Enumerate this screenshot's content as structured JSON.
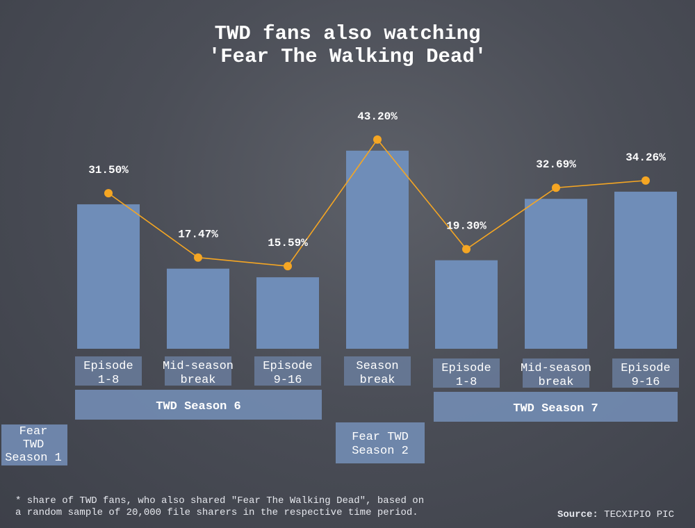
{
  "chart_data": {
    "type": "bar",
    "title_lines": [
      "TWD fans also watching",
      "'Fear The Walking Dead'"
    ],
    "categories": [
      {
        "lines": [
          "Episode",
          "1-8"
        ]
      },
      {
        "lines": [
          "Mid-season",
          "break"
        ]
      },
      {
        "lines": [
          "Episode",
          "9-16"
        ]
      },
      {
        "lines": [
          "Season",
          "break"
        ]
      },
      {
        "lines": [
          "Episode",
          "1-8"
        ]
      },
      {
        "lines": [
          "Mid-season",
          "break"
        ]
      },
      {
        "lines": [
          "Episode",
          "9-16"
        ]
      }
    ],
    "values": [
      31.5,
      17.47,
      15.59,
      43.2,
      19.3,
      32.69,
      34.26
    ],
    "value_labels": [
      "31.50%",
      "17.47%",
      "15.59%",
      "43.20%",
      "19.30%",
      "32.69%",
      "34.26%"
    ],
    "unit": "%",
    "ylim": [
      0,
      50
    ],
    "groups": [
      {
        "label": "TWD Season 6",
        "from": 0,
        "to": 2
      },
      {
        "label": "TWD Season 7",
        "from": 4,
        "to": 6
      }
    ],
    "seasons": [
      {
        "lines": [
          "Fear",
          "TWD",
          "Season 1"
        ]
      },
      {
        "lines": [
          "Fear TWD",
          "Season 2"
        ]
      }
    ],
    "grid": false,
    "legend": "none"
  },
  "footnote_lines": [
    "* share of TWD fans, who also shared \"Fear The Walking Dead\", based on",
    "a random sample of 20,000 file sharers in the respective time period."
  ],
  "source": {
    "label": "Source:",
    "value": "TECXIPIO PIC"
  },
  "colors": {
    "bar": "#6f8db8",
    "line": "#f5a623",
    "label_box": "#6a7d9c",
    "group_box": "#7189af"
  }
}
